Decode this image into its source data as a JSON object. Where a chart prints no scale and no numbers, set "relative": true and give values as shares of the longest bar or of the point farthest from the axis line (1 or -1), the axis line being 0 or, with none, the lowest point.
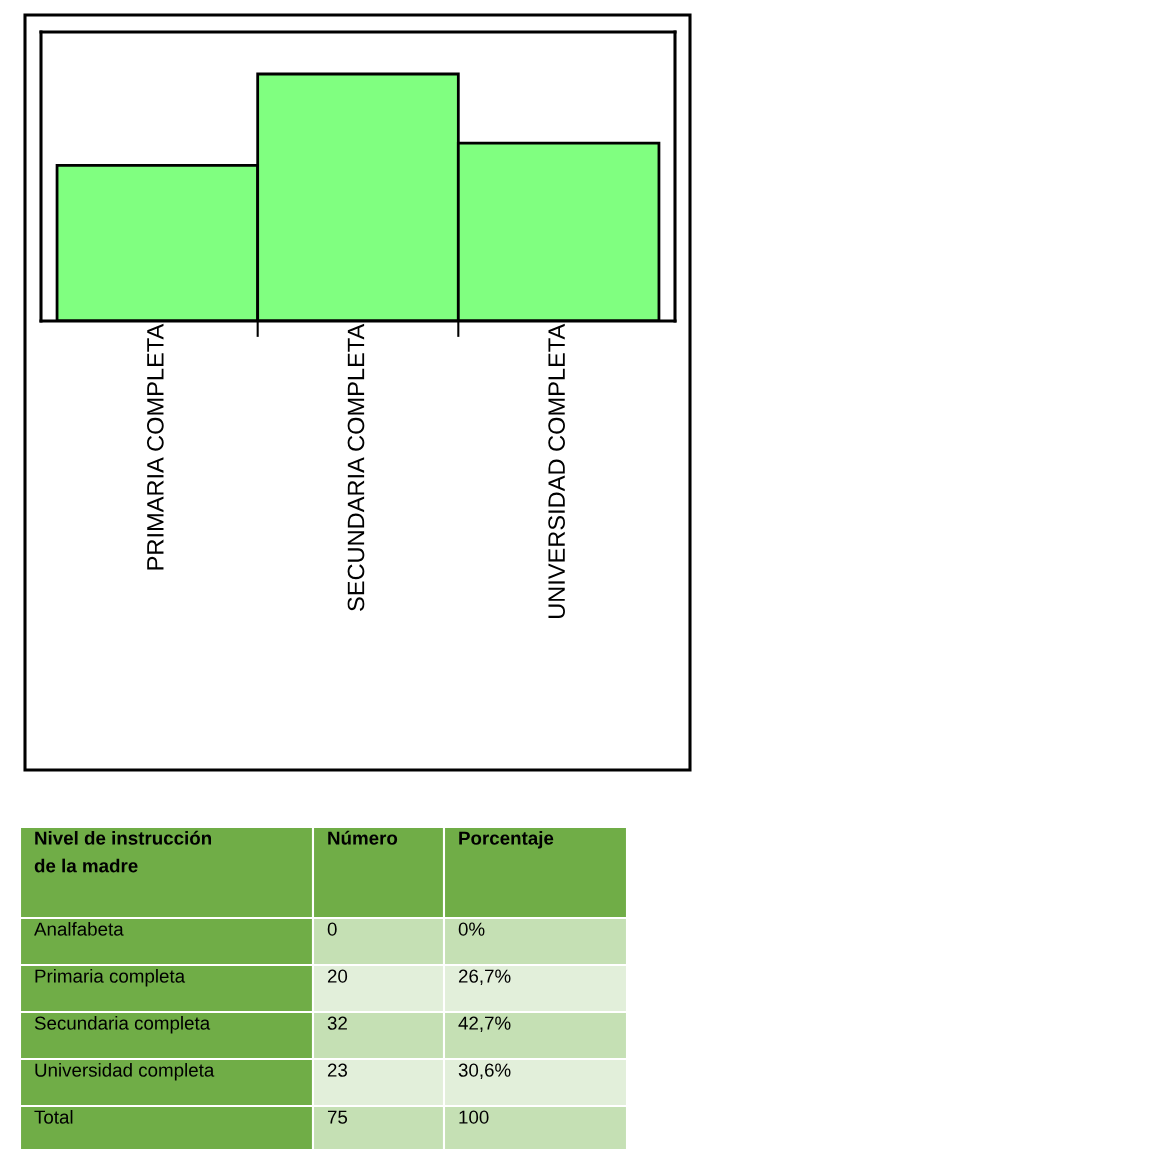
{
  "chart_data": [
    {
      "type": "bar",
      "categories": [
        "PRIMARIA COMPLETA",
        "SECUNDARIA COMPLETA",
        "UNIVERSIDAD COMPLETA"
      ],
      "values": [
        0.63,
        1,
        0.72
      ],
      "color": "#80ff80",
      "relative": true,
      "grid": false,
      "legend": false
    },
    {
      "type": "other",
      "annotations": [
        "Nivel de instrucción\nde la madre",
        "Número",
        "Porcentaje",
        "Analfabeta",
        "0",
        "0%",
        "Primaria completa",
        "20",
        "26,7%",
        "Secundaria completa",
        "32",
        "42,7%",
        "Universidad completa",
        "23",
        "30,6%",
        "Total",
        "75",
        "100"
      ]
    }
  ]
}
